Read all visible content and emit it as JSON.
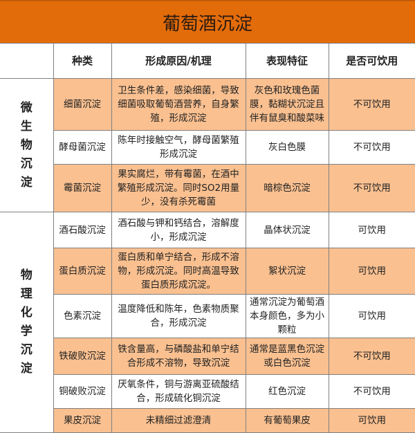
{
  "title": "葡萄酒沉淀",
  "headers": [
    "",
    "种类",
    "形成原因/机理",
    "表现特征",
    "是否可饮用"
  ],
  "groups": [
    {
      "label": "微生物沉淀",
      "rows": [
        {
          "type": "细菌沉淀",
          "reason": "卫生条件差，感染细菌，导致细菌吸取葡萄酒营养，自身繁殖，形成沉淀",
          "feature": "灰色和玫瑰色菌膜，黏糊状沉淀且伴有鼠臭和酸菜味",
          "drinkable": "不可饮用"
        },
        {
          "type": "酵母菌沉淀",
          "reason": "陈年时接触空气，酵母菌繁殖形成沉淀",
          "feature": "灰白色膜",
          "drinkable": "不可饮用"
        },
        {
          "type": "霉菌沉淀",
          "reason": "果实腐烂，带有霉菌，在酒中繁殖形成沉淀。同时SO2用量少，没有杀死霉菌",
          "feature": "暗棕色沉淀",
          "drinkable": "不可饮用"
        }
      ]
    },
    {
      "label": "物理化学沉淀",
      "rows": [
        {
          "type": "酒石酸沉淀",
          "reason": "酒石酸与钾和钙结合，溶解度小，形成沉淀",
          "feature": "晶体状沉淀",
          "drinkable": "可饮用"
        },
        {
          "type": "蛋白质沉淀",
          "reason": "蛋白质和单宁结合，形成不溶物，形成沉淀。同时高温导致蛋白质形成沉淀。",
          "feature": "絮状沉淀",
          "drinkable": "可饮用"
        },
        {
          "type": "色素沉淀",
          "reason": "温度降低和陈年，色素物质聚合，形成沉淀",
          "feature": "通常沉淀为葡萄酒本身颜色，多为小颗粒",
          "drinkable": "可饮用"
        },
        {
          "type": "铁破败沉淀",
          "reason": "铁含量高，与磷酸盐和单宁结合形成不溶物，导致沉淀",
          "feature": "通常是蓝黑色沉淀或白色沉淀",
          "drinkable": "不可饮用"
        },
        {
          "type": "铜破败沉淀",
          "reason": "厌氧条件，铜与游离亚硫酸结合，形成硫化铜沉淀",
          "feature": "红色沉淀",
          "drinkable": "不可饮用"
        },
        {
          "type": "果皮沉淀",
          "reason": "未精细过滤澄清",
          "feature": "有葡萄果皮",
          "drinkable": "可饮用"
        }
      ]
    }
  ],
  "colors": {
    "title_bg": "#E36C0A",
    "row_highlight": "#FAC090"
  }
}
